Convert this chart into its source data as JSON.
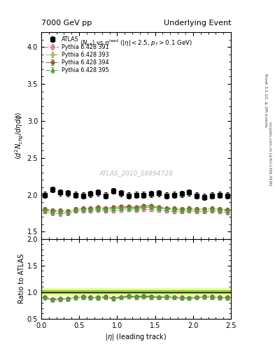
{
  "title_left": "7000 GeV pp",
  "title_right": "Underlying Event",
  "ylabel_main": "$\\langle d^2 N_{chg}/d\\eta d\\phi \\rangle$",
  "ylabel_ratio": "Ratio to ATLAS",
  "xlabel": "$|\\eta|$ (leading track)",
  "plot_title": "$\\langle N_{ch}\\rangle$ vs $\\eta^{lead}$ ($|\\eta| < 2.5$, $p_T > 0.1$ GeV)",
  "watermark": "ATLAS_2010_S8894728",
  "right_label_top": "Rivet 3.1.10, ≥ 2M events",
  "right_label_bot": "mcplots.cern.ch [arXiv:1306.3436]",
  "ylim_main": [
    1.4,
    4.2
  ],
  "ylim_ratio": [
    0.5,
    2.0
  ],
  "xlim": [
    0.0,
    2.5
  ],
  "yticks_main": [
    1.5,
    2.0,
    2.5,
    3.0,
    3.5,
    4.0
  ],
  "yticks_ratio": [
    0.5,
    1.0,
    1.5,
    2.0
  ],
  "series": [
    {
      "label": "ATLAS",
      "color": "#000000",
      "marker": "s",
      "markersize": 5,
      "markerfacecolor": "#000000",
      "linestyle": "none",
      "is_atlas": true,
      "x": [
        0.05,
        0.15,
        0.25,
        0.35,
        0.45,
        0.55,
        0.65,
        0.75,
        0.85,
        0.95,
        1.05,
        1.15,
        1.25,
        1.35,
        1.45,
        1.55,
        1.65,
        1.75,
        1.85,
        1.95,
        2.05,
        2.15,
        2.25,
        2.35,
        2.45
      ],
      "y": [
        2.0,
        2.07,
        2.03,
        2.02,
        2.0,
        1.99,
        2.01,
        2.03,
        1.99,
        2.05,
        2.02,
        1.99,
        2.0,
        2.0,
        2.01,
        2.02,
        1.99,
        2.0,
        2.01,
        2.03,
        1.99,
        1.97,
        1.99,
        2.0,
        1.99
      ],
      "yerr": [
        0.04,
        0.04,
        0.04,
        0.04,
        0.04,
        0.04,
        0.04,
        0.04,
        0.04,
        0.04,
        0.04,
        0.04,
        0.04,
        0.04,
        0.04,
        0.04,
        0.04,
        0.04,
        0.04,
        0.04,
        0.04,
        0.04,
        0.04,
        0.04,
        0.04
      ]
    },
    {
      "label": "Pythia 6.428 391",
      "color": "#cc6688",
      "marker": "s",
      "markersize": 3.5,
      "markerfacecolor": "none",
      "linestyle": "--",
      "is_atlas": false,
      "x": [
        0.05,
        0.15,
        0.25,
        0.35,
        0.45,
        0.55,
        0.65,
        0.75,
        0.85,
        0.95,
        1.05,
        1.15,
        1.25,
        1.35,
        1.45,
        1.55,
        1.65,
        1.75,
        1.85,
        1.95,
        2.05,
        2.15,
        2.25,
        2.35,
        2.45
      ],
      "y": [
        1.77,
        1.75,
        1.74,
        1.75,
        1.78,
        1.78,
        1.78,
        1.79,
        1.78,
        1.78,
        1.79,
        1.8,
        1.79,
        1.8,
        1.8,
        1.79,
        1.78,
        1.77,
        1.77,
        1.78,
        1.77,
        1.77,
        1.78,
        1.77,
        1.76
      ],
      "yerr": [
        0.025,
        0.025,
        0.025,
        0.025,
        0.025,
        0.025,
        0.025,
        0.025,
        0.025,
        0.025,
        0.025,
        0.025,
        0.025,
        0.025,
        0.025,
        0.025,
        0.025,
        0.025,
        0.025,
        0.025,
        0.025,
        0.025,
        0.025,
        0.025,
        0.025
      ]
    },
    {
      "label": "Pythia 6.428 393",
      "color": "#aaaa55",
      "marker": "D",
      "markersize": 3,
      "markerfacecolor": "none",
      "linestyle": "-.",
      "is_atlas": false,
      "x": [
        0.05,
        0.15,
        0.25,
        0.35,
        0.45,
        0.55,
        0.65,
        0.75,
        0.85,
        0.95,
        1.05,
        1.15,
        1.25,
        1.35,
        1.45,
        1.55,
        1.65,
        1.75,
        1.85,
        1.95,
        2.05,
        2.15,
        2.25,
        2.35,
        2.45
      ],
      "y": [
        1.8,
        1.78,
        1.77,
        1.77,
        1.8,
        1.81,
        1.81,
        1.82,
        1.81,
        1.82,
        1.82,
        1.83,
        1.82,
        1.83,
        1.83,
        1.82,
        1.81,
        1.8,
        1.8,
        1.81,
        1.8,
        1.8,
        1.81,
        1.8,
        1.79
      ],
      "yerr": [
        0.025,
        0.025,
        0.025,
        0.025,
        0.025,
        0.025,
        0.025,
        0.025,
        0.025,
        0.025,
        0.025,
        0.025,
        0.025,
        0.025,
        0.025,
        0.025,
        0.025,
        0.025,
        0.025,
        0.025,
        0.025,
        0.025,
        0.025,
        0.025,
        0.025
      ]
    },
    {
      "label": "Pythia 6.428 394",
      "color": "#886633",
      "marker": "o",
      "markersize": 3.5,
      "markerfacecolor": "#886633",
      "linestyle": "-.",
      "is_atlas": false,
      "x": [
        0.05,
        0.15,
        0.25,
        0.35,
        0.45,
        0.55,
        0.65,
        0.75,
        0.85,
        0.95,
        1.05,
        1.15,
        1.25,
        1.35,
        1.45,
        1.55,
        1.65,
        1.75,
        1.85,
        1.95,
        2.05,
        2.15,
        2.25,
        2.35,
        2.45
      ],
      "y": [
        1.81,
        1.79,
        1.79,
        1.78,
        1.81,
        1.82,
        1.82,
        1.83,
        1.82,
        1.83,
        1.84,
        1.84,
        1.83,
        1.85,
        1.85,
        1.83,
        1.82,
        1.82,
        1.81,
        1.82,
        1.81,
        1.81,
        1.82,
        1.81,
        1.8
      ],
      "yerr": [
        0.025,
        0.025,
        0.025,
        0.025,
        0.025,
        0.025,
        0.025,
        0.025,
        0.025,
        0.025,
        0.025,
        0.025,
        0.025,
        0.025,
        0.025,
        0.025,
        0.025,
        0.025,
        0.025,
        0.025,
        0.025,
        0.025,
        0.025,
        0.025,
        0.025
      ]
    },
    {
      "label": "Pythia 6.428 395",
      "color": "#44aa33",
      "marker": "^",
      "markersize": 3.5,
      "markerfacecolor": "#44aa33",
      "linestyle": "-.",
      "is_atlas": false,
      "x": [
        0.05,
        0.15,
        0.25,
        0.35,
        0.45,
        0.55,
        0.65,
        0.75,
        0.85,
        0.95,
        1.05,
        1.15,
        1.25,
        1.35,
        1.45,
        1.55,
        1.65,
        1.75,
        1.85,
        1.95,
        2.05,
        2.15,
        2.25,
        2.35,
        2.45
      ],
      "y": [
        1.79,
        1.77,
        1.77,
        1.76,
        1.79,
        1.8,
        1.8,
        1.81,
        1.8,
        1.81,
        1.82,
        1.82,
        1.81,
        1.83,
        1.83,
        1.82,
        1.81,
        1.8,
        1.79,
        1.8,
        1.79,
        1.79,
        1.8,
        1.79,
        1.78
      ],
      "yerr": [
        0.025,
        0.025,
        0.025,
        0.025,
        0.025,
        0.025,
        0.025,
        0.025,
        0.025,
        0.025,
        0.025,
        0.025,
        0.025,
        0.025,
        0.025,
        0.025,
        0.025,
        0.025,
        0.025,
        0.025,
        0.025,
        0.025,
        0.025,
        0.025,
        0.025
      ]
    }
  ],
  "ratio_band_outer_color": "#eeff99",
  "ratio_band_inner_color": "#99cc44",
  "ratio_band_outer": [
    0.95,
    1.07
  ],
  "ratio_band_inner": [
    0.98,
    1.035
  ],
  "ratio_line_color": "#000000"
}
